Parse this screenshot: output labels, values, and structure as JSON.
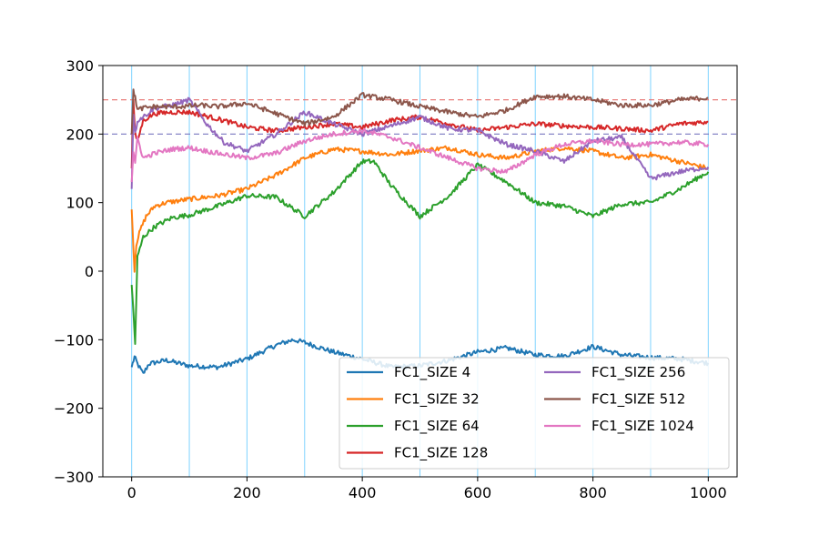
{
  "chart_data": {
    "type": "line",
    "xlim": [
      -50,
      1050
    ],
    "ylim": [
      -300,
      300
    ],
    "xticks": [
      0,
      200,
      400,
      600,
      800,
      1000
    ],
    "yticks": [
      -300,
      -200,
      -100,
      0,
      100,
      200,
      300
    ],
    "xtick_labels": [
      "0",
      "200",
      "400",
      "600",
      "800",
      "1000"
    ],
    "ytick_labels": [
      "−300",
      "−200",
      "−100",
      "0",
      "100",
      "200",
      "300"
    ],
    "vlines": [
      0,
      100,
      200,
      300,
      400,
      500,
      600,
      700,
      800,
      900,
      1000
    ],
    "vline_color": "#7fd3ff",
    "hlines": [
      {
        "y": 250,
        "color": "#e8706f"
      },
      {
        "y": 200,
        "color": "#7a78c0"
      }
    ],
    "legend_position": "lower-right",
    "legend_columns": 2,
    "series": [
      {
        "name": "FC1_SIZE 4",
        "color": "#1f77b4",
        "x": [
          0,
          5,
          10,
          20,
          30,
          60,
          100,
          150,
          200,
          250,
          280,
          300,
          350,
          400,
          450,
          500,
          550,
          600,
          650,
          700,
          750,
          800,
          850,
          900,
          950,
          1000
        ],
        "y": [
          -140,
          -125,
          -135,
          -150,
          -135,
          -130,
          -138,
          -140,
          -128,
          -108,
          -100,
          -104,
          -118,
          -128,
          -140,
          -138,
          -130,
          -118,
          -112,
          -122,
          -124,
          -110,
          -122,
          -126,
          -128,
          -134
        ]
      },
      {
        "name": "FC1_SIZE 32",
        "color": "#ff7f0e",
        "x": [
          0,
          5,
          8,
          15,
          25,
          40,
          60,
          100,
          150,
          200,
          250,
          300,
          350,
          400,
          450,
          500,
          550,
          600,
          650,
          700,
          750,
          800,
          850,
          900,
          950,
          1000
        ],
        "y": [
          90,
          0,
          40,
          60,
          80,
          95,
          100,
          105,
          110,
          120,
          140,
          165,
          178,
          175,
          170,
          176,
          180,
          170,
          165,
          175,
          180,
          175,
          165,
          170,
          160,
          150
        ]
      },
      {
        "name": "FC1_SIZE 64",
        "color": "#2ca02c",
        "x": [
          0,
          3,
          6,
          10,
          20,
          40,
          70,
          100,
          150,
          200,
          250,
          300,
          350,
          400,
          420,
          450,
          500,
          550,
          600,
          650,
          700,
          750,
          800,
          850,
          900,
          950,
          1000
        ],
        "y": [
          -20,
          -60,
          -105,
          20,
          50,
          65,
          78,
          82,
          95,
          110,
          108,
          80,
          115,
          160,
          160,
          125,
          80,
          110,
          155,
          130,
          100,
          95,
          80,
          98,
          100,
          120,
          145
        ]
      },
      {
        "name": "FC1_SIZE 128",
        "color": "#d62728",
        "x": [
          0,
          3,
          6,
          10,
          20,
          40,
          70,
          100,
          150,
          200,
          250,
          300,
          350,
          400,
          450,
          500,
          550,
          600,
          650,
          700,
          750,
          800,
          850,
          900,
          950,
          1000
        ],
        "y": [
          150,
          250,
          200,
          190,
          220,
          230,
          232,
          232,
          222,
          210,
          205,
          210,
          215,
          210,
          220,
          225,
          215,
          205,
          210,
          215,
          212,
          210,
          208,
          205,
          215,
          218
        ]
      },
      {
        "name": "FC1_SIZE 256",
        "color": "#9467bd",
        "x": [
          0,
          3,
          6,
          10,
          20,
          40,
          70,
          100,
          130,
          160,
          200,
          250,
          300,
          350,
          400,
          450,
          500,
          550,
          600,
          650,
          700,
          750,
          800,
          850,
          900,
          950,
          1000
        ],
        "y": [
          120,
          230,
          200,
          220,
          225,
          238,
          242,
          250,
          215,
          188,
          175,
          200,
          232,
          215,
          200,
          212,
          225,
          208,
          205,
          185,
          175,
          160,
          190,
          195,
          135,
          145,
          152
        ]
      },
      {
        "name": "FC1_SIZE 512",
        "color": "#8c564b",
        "x": [
          0,
          3,
          6,
          10,
          20,
          40,
          80,
          120,
          150,
          200,
          250,
          300,
          350,
          400,
          450,
          500,
          550,
          600,
          650,
          700,
          750,
          800,
          850,
          900,
          950,
          1000
        ],
        "y": [
          200,
          262,
          255,
          235,
          238,
          240,
          240,
          242,
          240,
          245,
          230,
          215,
          225,
          257,
          250,
          240,
          232,
          225,
          235,
          255,
          255,
          250,
          242,
          242,
          250,
          253
        ]
      },
      {
        "name": "FC1_SIZE 1024",
        "color": "#e377c2",
        "x": [
          0,
          3,
          6,
          10,
          20,
          40,
          70,
          100,
          150,
          200,
          250,
          300,
          350,
          400,
          450,
          500,
          550,
          600,
          650,
          700,
          750,
          800,
          850,
          900,
          950,
          1000
        ],
        "y": [
          130,
          175,
          155,
          195,
          165,
          172,
          178,
          180,
          172,
          165,
          172,
          190,
          200,
          205,
          195,
          180,
          165,
          150,
          145,
          170,
          185,
          190,
          185,
          185,
          188,
          185
        ]
      }
    ]
  }
}
